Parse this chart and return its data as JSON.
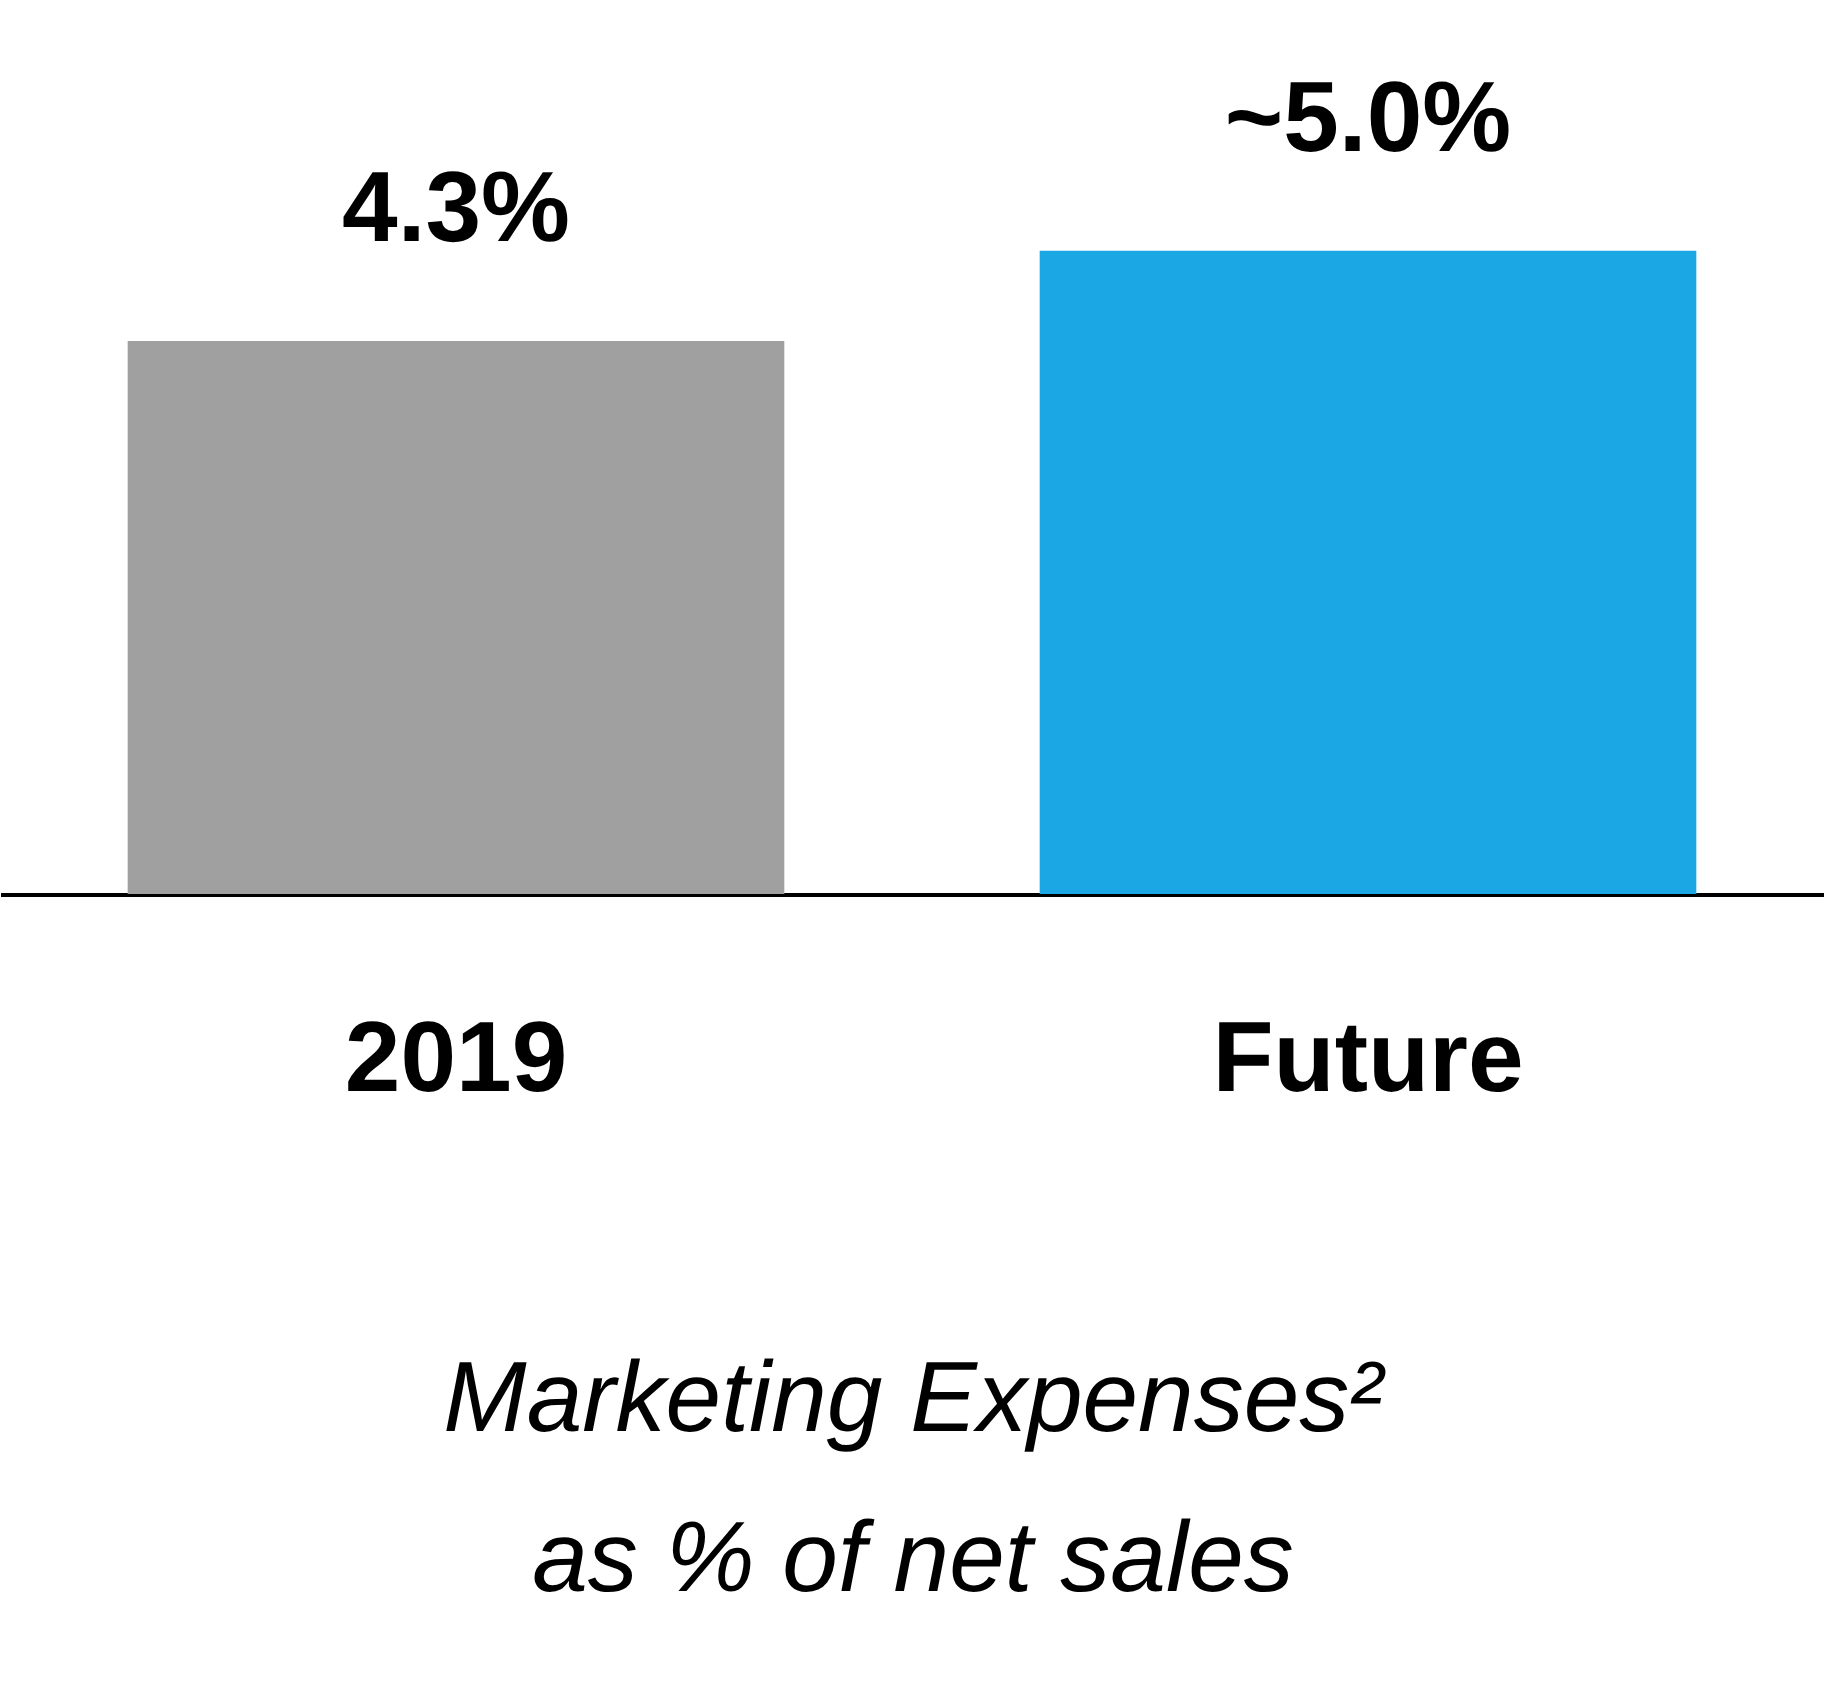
{
  "chart_data": {
    "type": "bar",
    "categories": [
      "2019",
      "Future"
    ],
    "values": [
      4.3,
      5.0
    ],
    "colors": [
      "#a0a0a0",
      "#1aa7e4"
    ],
    "value_labels": [
      "4.3%",
      "~5.0%"
    ],
    "xlabel": "Marketing Expenses²\nas % of net sales",
    "grid": false
  }
}
